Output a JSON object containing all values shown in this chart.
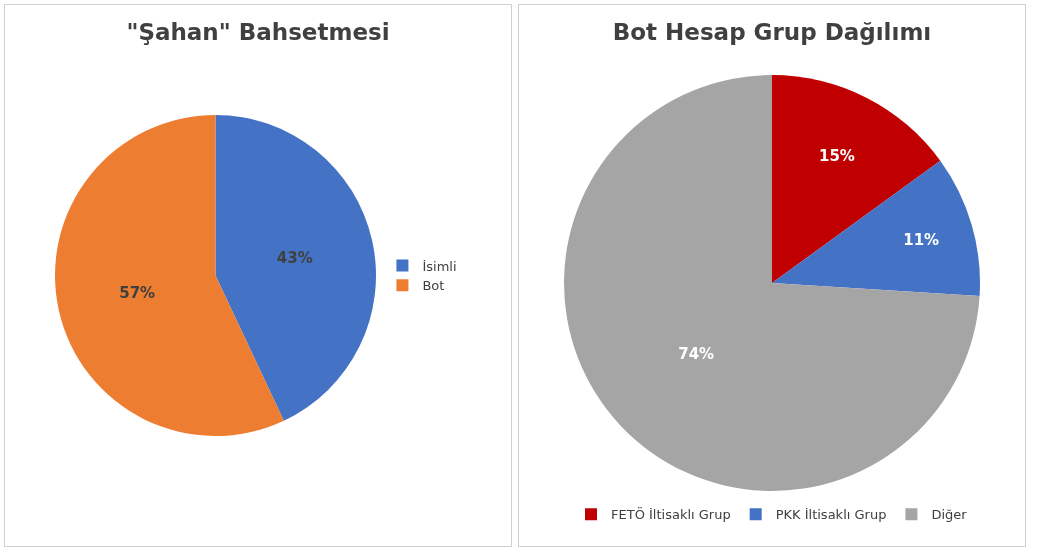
{
  "chart_data": [
    {
      "type": "pie",
      "title": "\"Şahan\" Bahsetmesi",
      "categories": [
        "İsimli",
        "Bot"
      ],
      "values": [
        43,
        57
      ],
      "colors": [
        "#4472c4",
        "#ed7d31"
      ],
      "value_labels": [
        "43%",
        "57%"
      ],
      "legend": "right"
    },
    {
      "type": "pie",
      "title": "Bot Hesap Grup Dağılımı",
      "categories": [
        "FETÖ İltisaklı Grup",
        "PKK İltisaklı Grup",
        "Diğer"
      ],
      "values": [
        15,
        11,
        74
      ],
      "colors": [
        "#c00000",
        "#4472c4",
        "#a5a5a5"
      ],
      "value_labels": [
        "15%",
        "11%",
        "74%"
      ],
      "legend": "bottom"
    }
  ]
}
